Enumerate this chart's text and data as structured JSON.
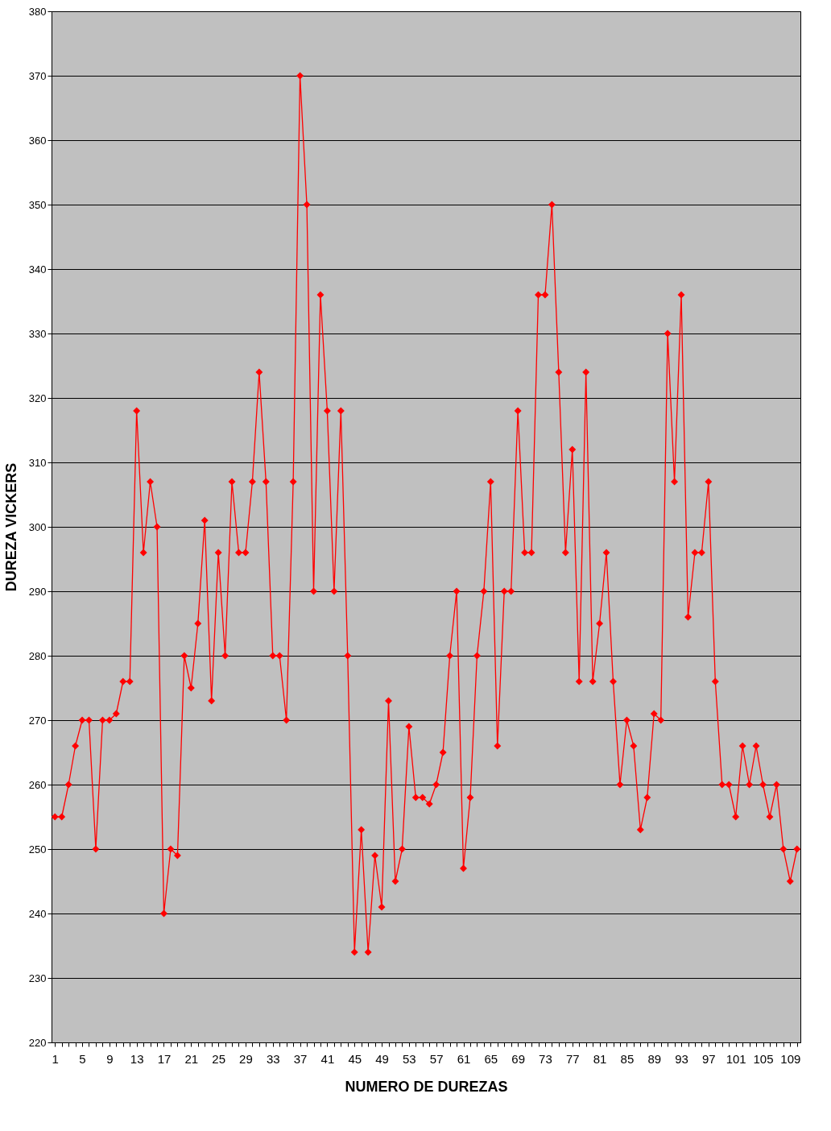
{
  "chart_data": {
    "type": "line",
    "xlabel": "NUMERO DE DUREZAS",
    "ylabel": "DUREZA VICKERS",
    "categories": [
      "1",
      null,
      null,
      null,
      "5",
      null,
      null,
      null,
      "9",
      null,
      null,
      null,
      "13",
      null,
      null,
      null,
      "17",
      null,
      null,
      null,
      "21",
      null,
      null,
      null,
      "25",
      null,
      null,
      null,
      "29",
      null,
      null,
      null,
      "33",
      null,
      null,
      null,
      "37",
      null,
      null,
      null,
      "41",
      null,
      null,
      null,
      "45",
      null,
      null,
      null,
      "49",
      null,
      null,
      null,
      "53",
      null,
      null,
      null,
      "57",
      null,
      null,
      null,
      "61",
      null,
      null,
      null,
      "65",
      null,
      null,
      null,
      "69",
      null,
      null,
      null,
      "73",
      null,
      null,
      null,
      "77",
      null,
      null,
      null,
      "81",
      null,
      null,
      null,
      "85",
      null,
      null,
      null,
      "89",
      null,
      null,
      null,
      "93",
      null,
      null,
      null,
      "97",
      null,
      null,
      null,
      "101",
      null,
      null,
      null,
      "105",
      null,
      null,
      null,
      "109",
      null
    ],
    "series": [
      {
        "color": "#ff0000",
        "values": [
          255,
          255,
          260,
          266,
          270,
          270,
          250,
          270,
          270,
          271,
          276,
          276,
          318,
          296,
          307,
          300,
          240,
          250,
          249,
          280,
          275,
          285,
          301,
          273,
          296,
          280,
          307,
          296,
          296,
          307,
          324,
          307,
          280,
          280,
          270,
          307,
          370,
          350,
          290,
          336,
          318,
          290,
          318,
          280,
          234,
          253,
          234,
          249,
          241,
          273,
          245,
          250,
          269,
          258,
          258,
          257,
          260,
          265,
          280,
          290,
          247,
          258,
          280,
          290,
          307,
          266,
          290,
          290,
          318,
          296,
          296,
          336,
          336,
          350,
          324,
          296,
          312,
          276,
          324,
          276,
          285,
          296,
          276,
          260,
          270,
          266,
          253,
          258,
          271,
          270,
          330,
          307,
          336,
          286,
          296,
          296,
          307,
          276,
          260,
          260,
          255,
          266,
          260,
          266,
          260,
          255,
          260,
          250,
          245,
          250
        ]
      }
    ],
    "ylim": [
      220,
      380
    ],
    "yticks": [
      220,
      230,
      240,
      250,
      260,
      270,
      280,
      290,
      300,
      310,
      320,
      330,
      340,
      350,
      360,
      370,
      380
    ],
    "grid": "y",
    "marker": "diamond",
    "line_style": "solid"
  }
}
